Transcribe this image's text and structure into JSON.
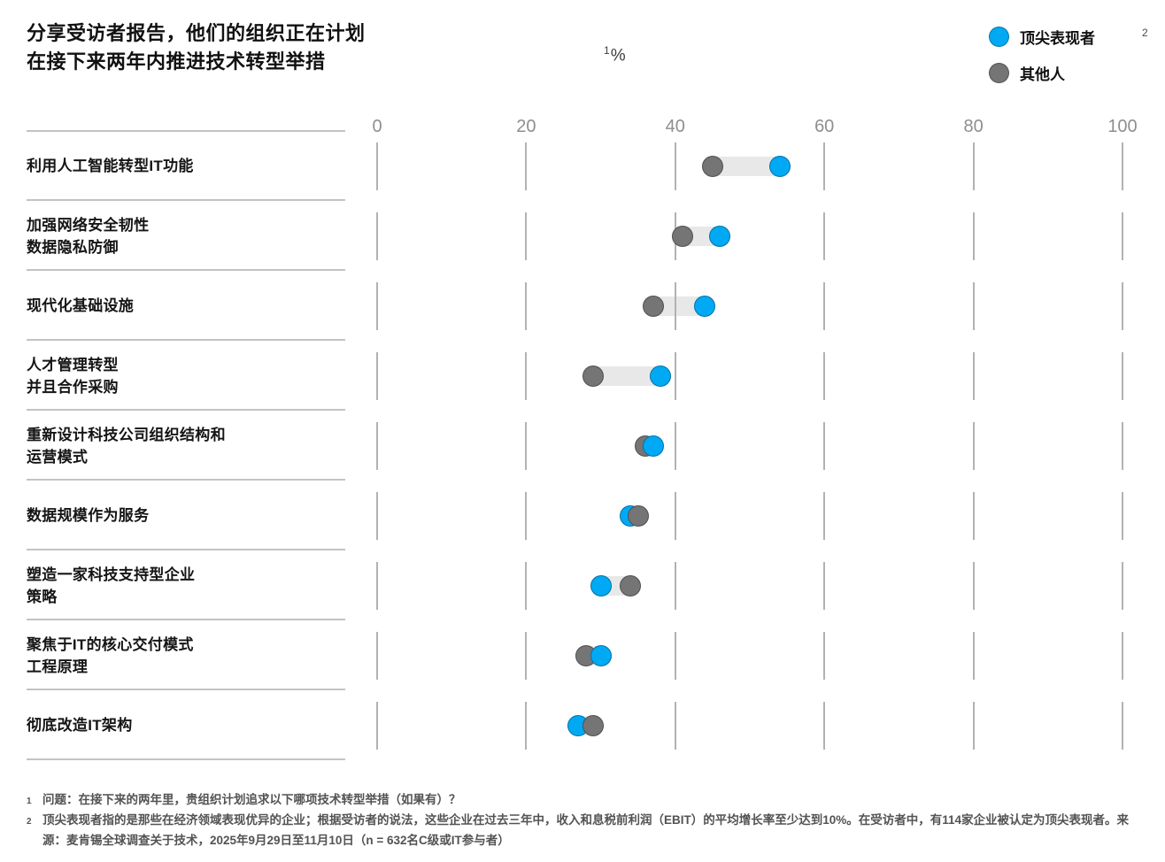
{
  "title": {
    "line1": "分享受访者报告，他们的组织正在计划",
    "line2": "在接下来两年内推进技术转型举措"
  },
  "unit_label": {
    "superscript": "1",
    "text": "%"
  },
  "legend": {
    "superscript": "2",
    "items": [
      {
        "label": "顶尖表现者",
        "color": "#00a9f4"
      },
      {
        "label": "其他人",
        "color": "#757575"
      }
    ]
  },
  "chart_data": {
    "type": "dumbbell-dot",
    "title": "分享受访者报告，他们的组织正在计划在接下来两年内推进技术转型举措",
    "xlabel": "%",
    "xlim": [
      0,
      100
    ],
    "xticks": [
      0,
      20,
      40,
      60,
      80,
      100
    ],
    "grid": "vertical tick segments per row",
    "legend_position": "top-right",
    "categories": [
      "利用人工智能转型IT功能",
      "加强网络安全韧性 数据隐私防御",
      "现代化基础设施",
      "人才管理转型 并且合作采购",
      "重新设计科技公司组织结构和 运营模式",
      "数据规模作为服务",
      "塑造一家科技支持型企业 策略",
      "聚焦于IT的核心交付模式 工程原理",
      "彻底改造IT架构"
    ],
    "series": [
      {
        "name": "顶尖表现者",
        "color": "#00a9f4",
        "values": [
          54,
          46,
          44,
          38,
          37,
          34,
          30,
          30,
          27
        ]
      },
      {
        "name": "其他人",
        "color": "#757575",
        "values": [
          45,
          41,
          37,
          29,
          36,
          35,
          34,
          28,
          29
        ]
      }
    ],
    "rows": [
      {
        "label_lines": [
          "利用人工智能转型IT功能"
        ]
      },
      {
        "label_lines": [
          "加强网络安全韧性",
          "数据隐私防御"
        ]
      },
      {
        "label_lines": [
          "现代化基础设施"
        ]
      },
      {
        "label_lines": [
          "人才管理转型",
          "并且合作采购"
        ]
      },
      {
        "label_lines": [
          "重新设计科技公司组织结构和",
          "运营模式"
        ]
      },
      {
        "label_lines": [
          "数据规模作为服务"
        ]
      },
      {
        "label_lines": [
          "塑造一家科技支持型企业",
          "策略"
        ]
      },
      {
        "label_lines": [
          "聚焦于IT的核心交付模式",
          "工程原理"
        ]
      },
      {
        "label_lines": [
          "彻底改造IT架构"
        ]
      }
    ]
  },
  "footnotes": [
    {
      "marker": "1",
      "text": "问题：在接下来的两年里，贵组织计划追求以下哪项技术转型举措（如果有）？"
    },
    {
      "marker": "2",
      "text": "顶尖表现者指的是那些在经济领域表现优异的企业；根据受访者的说法，这些企业在过去三年中，收入和息税前利润（EBIT）的平均增长率至少达到10%。在受访者中，有114家企业被认定为顶尖表现者。来源：麦肯锡全球调查关于技术，2025年9月29日至11月10日（n = 632名C级或IT参与者）"
    }
  ],
  "colors": {
    "top_performers": "#00a9f4",
    "others": "#757575",
    "band": "#e8e8e8",
    "tick": "#b2b2b2",
    "divider": "#c3c3c3",
    "axis_text": "#8e8e8e"
  }
}
